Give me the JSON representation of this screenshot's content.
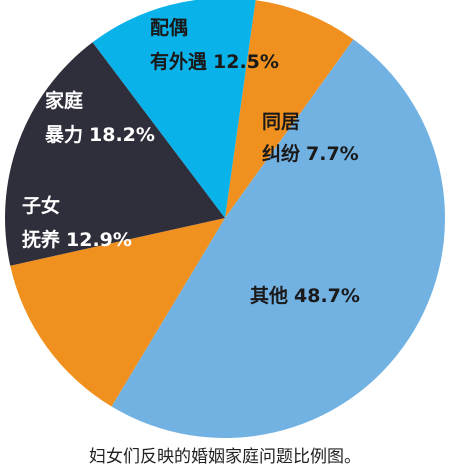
{
  "chart_data": {
    "type": "pie",
    "title": "妇女们反映的婚姻家庭问题比例图。",
    "categories": [
      [
        "同居",
        "纠纷"
      ],
      [
        "其他"
      ],
      [
        "子女",
        "抚养"
      ],
      [
        "家庭",
        "暴力"
      ],
      [
        "配偶",
        "有外遇"
      ]
    ],
    "values": [
      7.7,
      48.7,
      12.9,
      18.2,
      12.5
    ],
    "value_labels": [
      "7.7%",
      "48.7%",
      "12.9%",
      "18.2%",
      "12.5%"
    ],
    "colors": [
      "#f0901e",
      "#72b2e2",
      "#f0901e",
      "#2f2f3b",
      "#0ab2ea"
    ]
  }
}
